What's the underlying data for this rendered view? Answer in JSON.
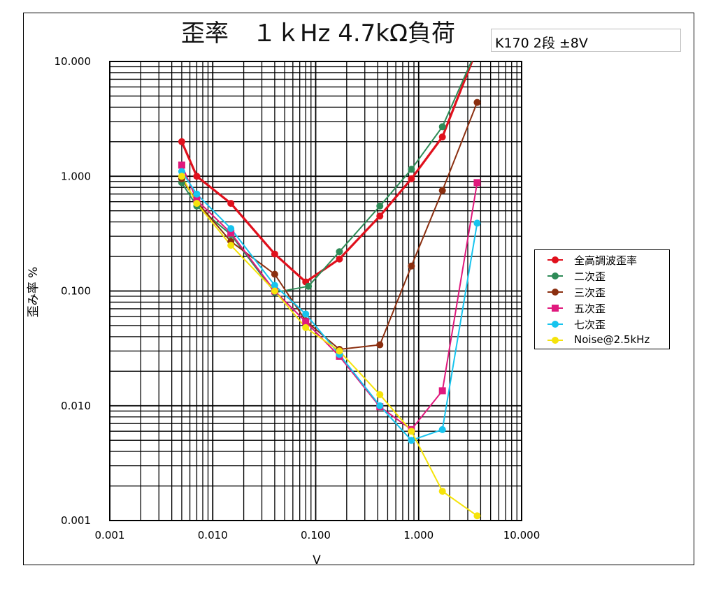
{
  "title": "歪率　１ｋHz 4.7kΩ負荷",
  "note": "K170 2段  ±8V",
  "chart_data": {
    "type": "line",
    "xscale": "log",
    "yscale": "log",
    "xlim": [
      0.001,
      10
    ],
    "ylim": [
      0.001,
      10
    ],
    "grid": true,
    "xlabel": "V",
    "ylabel": "歪み率 %",
    "xticks": [
      "0.001",
      "0.010",
      "0.100",
      "1.000",
      "10.000"
    ],
    "yticks": [
      "10.000",
      "1.000",
      "0.100",
      "0.010",
      "0.001"
    ],
    "legend_position": "right",
    "series": [
      {
        "name": "全高調波歪率",
        "color": "#e0101c",
        "marker": "circle",
        "width": 3.2,
        "points": [
          [
            0.005,
            2.0
          ],
          [
            0.007,
            1.0
          ],
          [
            0.015,
            0.58
          ],
          [
            0.04,
            0.21
          ],
          [
            0.08,
            0.12
          ],
          [
            0.17,
            0.19
          ],
          [
            0.42,
            0.45
          ],
          [
            0.85,
            0.95
          ],
          [
            1.7,
            2.2
          ],
          [
            3.7,
            13.0
          ]
        ]
      },
      {
        "name": "二次歪",
        "color": "#2e8b57",
        "marker": "circle",
        "width": 2,
        "points": [
          [
            0.005,
            0.88
          ],
          [
            0.007,
            0.55
          ],
          [
            0.015,
            0.31
          ],
          [
            0.04,
            0.097
          ],
          [
            0.085,
            0.11
          ],
          [
            0.17,
            0.22
          ],
          [
            0.42,
            0.55
          ],
          [
            0.85,
            1.15
          ],
          [
            1.7,
            2.7
          ],
          [
            3.7,
            13.0
          ]
        ]
      },
      {
        "name": "三次歪",
        "color": "#8b2f10",
        "marker": "circle",
        "width": 2,
        "points": [
          [
            0.005,
            0.95
          ],
          [
            0.007,
            0.6
          ],
          [
            0.015,
            0.27
          ],
          [
            0.04,
            0.14
          ],
          [
            0.08,
            0.055
          ],
          [
            0.17,
            0.031
          ],
          [
            0.42,
            0.034
          ],
          [
            0.85,
            0.165
          ],
          [
            1.7,
            0.75
          ],
          [
            3.7,
            4.4
          ]
        ]
      },
      {
        "name": "五次歪",
        "color": "#e0197d",
        "marker": "square",
        "width": 2,
        "points": [
          [
            0.005,
            1.25
          ],
          [
            0.007,
            0.62
          ],
          [
            0.015,
            0.32
          ],
          [
            0.04,
            0.1
          ],
          [
            0.08,
            0.054
          ],
          [
            0.17,
            0.027
          ],
          [
            0.42,
            0.0098
          ],
          [
            0.85,
            0.0062
          ],
          [
            1.7,
            0.0135
          ],
          [
            3.7,
            0.88
          ]
        ]
      },
      {
        "name": "七次歪",
        "color": "#17c4ee",
        "marker": "circle",
        "width": 2,
        "points": [
          [
            0.005,
            1.1
          ],
          [
            0.007,
            0.7
          ],
          [
            0.015,
            0.35
          ],
          [
            0.04,
            0.112
          ],
          [
            0.08,
            0.063
          ],
          [
            0.17,
            0.028
          ],
          [
            0.42,
            0.01
          ],
          [
            0.85,
            0.005
          ],
          [
            1.7,
            0.0062
          ],
          [
            3.7,
            0.39
          ]
        ]
      },
      {
        "name": "Noise@2.5kHz",
        "color": "#f5e30a",
        "marker": "circle",
        "width": 2,
        "points": [
          [
            0.005,
            1.0
          ],
          [
            0.007,
            0.58
          ],
          [
            0.015,
            0.25
          ],
          [
            0.04,
            0.1
          ],
          [
            0.08,
            0.048
          ],
          [
            0.17,
            0.03
          ],
          [
            0.42,
            0.0125
          ],
          [
            0.85,
            0.006
          ],
          [
            1.7,
            0.0018
          ],
          [
            3.7,
            0.0011
          ]
        ]
      }
    ]
  }
}
